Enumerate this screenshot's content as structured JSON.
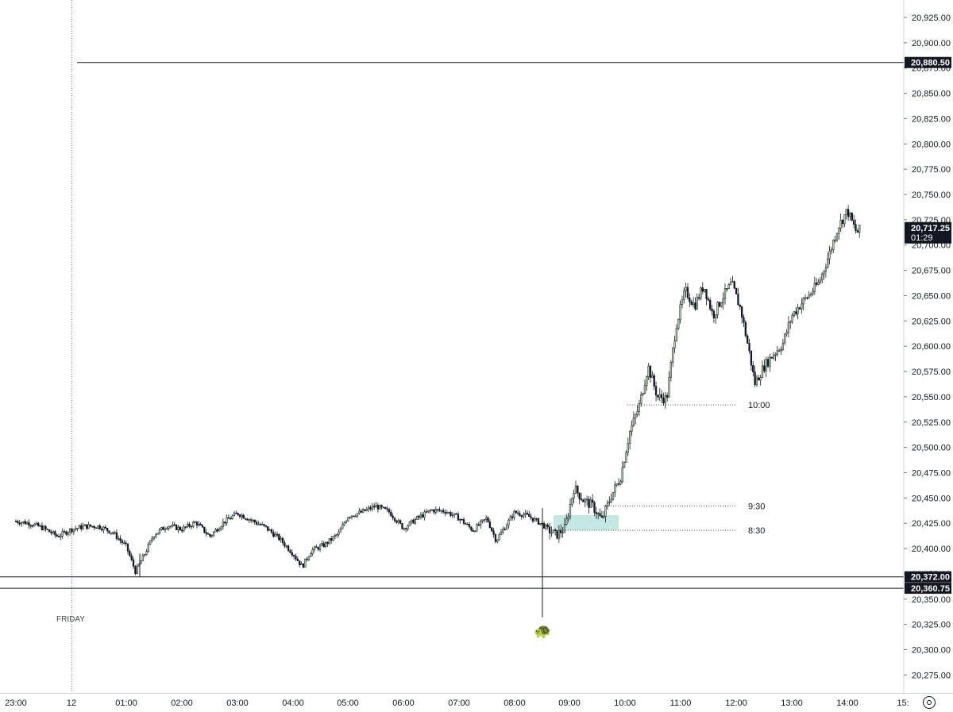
{
  "chart_data": {
    "type": "candlestick",
    "price_axis": {
      "range": [
        20255,
        20940
      ],
      "ticks": [
        "20,925.00",
        "20,900.00",
        "20,875.00",
        "20,850.00",
        "20,825.00",
        "20,800.00",
        "20,775.00",
        "20,750.00",
        "20,725.00",
        "20,700.00",
        "20,675.00",
        "20,650.00",
        "20,625.00",
        "20,600.00",
        "20,575.00",
        "20,550.00",
        "20,525.00",
        "20,500.00",
        "20,475.00",
        "20,450.00",
        "20,425.00",
        "20,400.00",
        "20,375.00",
        "20,350.00",
        "20,325.00",
        "20,300.00",
        "20,275.00"
      ]
    },
    "time_axis": {
      "ticks": [
        "23:00",
        "12",
        "01:00",
        "02:00",
        "03:00",
        "04:00",
        "05:00",
        "06:00",
        "07:00",
        "08:00",
        "09:00",
        "10:00",
        "11:00",
        "12:00",
        "13:00",
        "14:00",
        "15:"
      ]
    },
    "day_separator_label": "FRIDAY",
    "last_price": {
      "price": "20,717.25",
      "countdown": "01:29"
    },
    "horizontal_levels": [
      {
        "price": 20880.5,
        "label": "20,880.50"
      },
      {
        "price": 20372.0,
        "label": "20,372.00"
      },
      {
        "price": 20360.75,
        "label": "20,360.75"
      }
    ],
    "annotations": [
      {
        "label": "10:00",
        "price": 20542
      },
      {
        "label": "9:30",
        "price": 20442
      },
      {
        "label": "8:30",
        "price": 20418
      }
    ],
    "zone": {
      "price_low": 20418,
      "price_high": 20433,
      "color": "#b2dfdb"
    },
    "price_path": [
      [
        "23:00",
        20427
      ],
      [
        "23:15",
        20425
      ],
      [
        "23:30",
        20420
      ],
      [
        "23:45",
        20412
      ],
      [
        "00:00",
        20419
      ],
      [
        "00:15",
        20422
      ],
      [
        "00:30",
        20422
      ],
      [
        "00:45",
        20416
      ],
      [
        "01:00",
        20402
      ],
      [
        "01:10",
        20377
      ],
      [
        "01:20",
        20395
      ],
      [
        "01:30",
        20414
      ],
      [
        "01:45",
        20423
      ],
      [
        "02:00",
        20419
      ],
      [
        "02:15",
        20426
      ],
      [
        "02:30",
        20412
      ],
      [
        "02:45",
        20426
      ],
      [
        "03:00",
        20435
      ],
      [
        "03:15",
        20428
      ],
      [
        "03:30",
        20421
      ],
      [
        "03:45",
        20410
      ],
      [
        "04:00",
        20395
      ],
      [
        "04:10",
        20382
      ],
      [
        "04:20",
        20398
      ],
      [
        "04:35",
        20404
      ],
      [
        "04:50",
        20415
      ],
      [
        "05:00",
        20432
      ],
      [
        "05:15",
        20436
      ],
      [
        "05:30",
        20442
      ],
      [
        "05:45",
        20436
      ],
      [
        "06:00",
        20420
      ],
      [
        "06:15",
        20430
      ],
      [
        "06:30",
        20438
      ],
      [
        "06:45",
        20437
      ],
      [
        "07:00",
        20430
      ],
      [
        "07:15",
        20418
      ],
      [
        "07:30",
        20430
      ],
      [
        "07:40",
        20408
      ],
      [
        "08:00",
        20436
      ],
      [
        "08:15",
        20432
      ],
      [
        "08:30",
        20424
      ],
      [
        "08:45",
        20413
      ],
      [
        "08:55",
        20420
      ],
      [
        "09:05",
        20460
      ],
      [
        "09:15",
        20448
      ],
      [
        "09:25",
        20442
      ],
      [
        "09:35",
        20428
      ],
      [
        "09:45",
        20452
      ],
      [
        "09:55",
        20470
      ],
      [
        "10:05",
        20515
      ],
      [
        "10:15",
        20540
      ],
      [
        "10:25",
        20580
      ],
      [
        "10:35",
        20550
      ],
      [
        "10:45",
        20548
      ],
      [
        "10:55",
        20620
      ],
      [
        "11:05",
        20655
      ],
      [
        "11:15",
        20640
      ],
      [
        "11:25",
        20660
      ],
      [
        "11:35",
        20630
      ],
      [
        "11:45",
        20648
      ],
      [
        "11:55",
        20662
      ],
      [
        "12:05",
        20636
      ],
      [
        "12:15",
        20590
      ],
      [
        "12:20",
        20563
      ],
      [
        "12:30",
        20580
      ],
      [
        "12:40",
        20592
      ],
      [
        "12:50",
        20602
      ],
      [
        "13:00",
        20630
      ],
      [
        "13:10",
        20642
      ],
      [
        "13:20",
        20652
      ],
      [
        "13:30",
        20664
      ],
      [
        "13:40",
        20690
      ],
      [
        "13:50",
        20718
      ],
      [
        "14:00",
        20734
      ],
      [
        "14:10",
        20712
      ],
      [
        "14:15",
        20717
      ]
    ]
  },
  "settings_label": "settings"
}
